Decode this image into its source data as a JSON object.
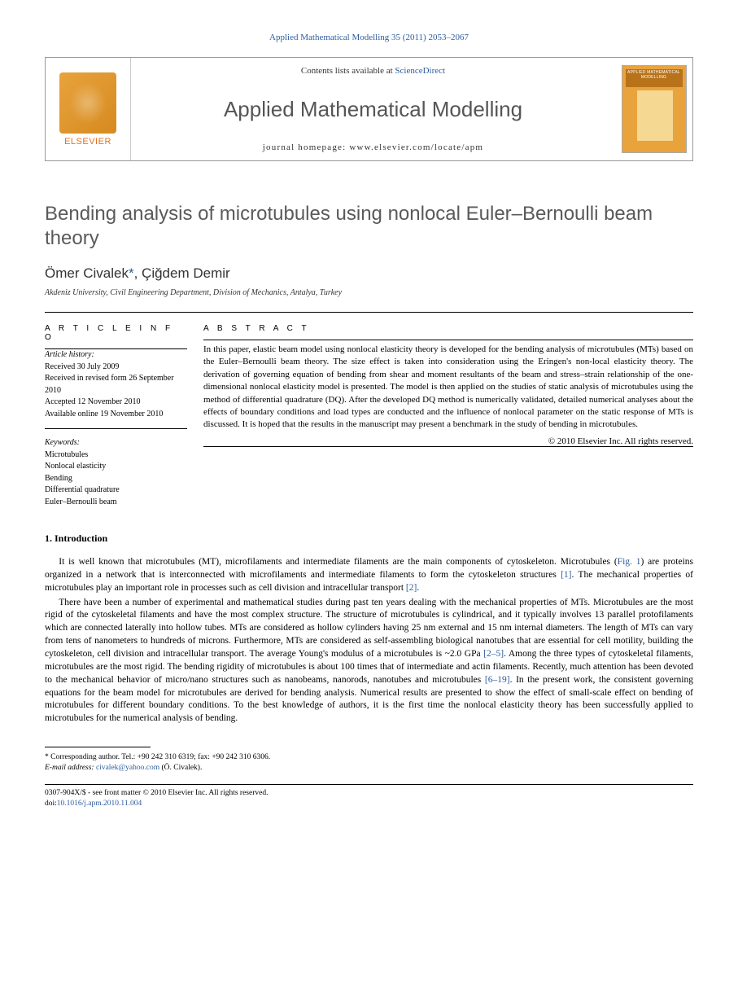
{
  "header_citation": "Applied Mathematical Modelling 35 (2011) 2053–2067",
  "contents_text": "Contents lists available at ",
  "contents_link": "ScienceDirect",
  "journal_name": "Applied Mathematical Modelling",
  "homepage_label": "journal homepage: www.elsevier.com/locate/apm",
  "publisher_logo_text": "ELSEVIER",
  "cover_title_text": "APPLIED MATHEMATICAL MODELLING",
  "article_title": "Bending analysis of microtubules using nonlocal Euler–Bernoulli beam theory",
  "authors_html": "Ömer Civalek",
  "corr_mark": "*",
  "author2": ", Çiğdem Demir",
  "affiliation": "Akdeniz University, Civil Engineering Department, Division of Mechanics, Antalya, Turkey",
  "info_heading": "A R T I C L E   I N F O",
  "abstract_heading": "A B S T R A C T",
  "history_label": "Article history:",
  "history": {
    "received": "Received 30 July 2009",
    "revised": "Received in revised form 26 September 2010",
    "accepted": "Accepted 12 November 2010",
    "online": "Available online 19 November 2010"
  },
  "keywords_label": "Keywords:",
  "keywords": [
    "Microtubules",
    "Nonlocal elasticity",
    "Bending",
    "Differential quadrature",
    "Euler–Bernoulli beam"
  ],
  "abstract": "In this paper, elastic beam model using nonlocal elasticity theory is developed for the bending analysis of microtubules (MTs) based on the Euler–Bernoulli beam theory. The size effect is taken into consideration using the Eringen's non-local elasticity theory. The derivation of governing equation of bending from shear and moment resultants of the beam and stress–strain relationship of the one-dimensional nonlocal elasticity model is presented. The model is then applied on the studies of static analysis of microtubules using the method of differential quadrature (DQ). After the developed DQ method is numerically validated, detailed numerical analyses about the effects of boundary conditions and load types are conducted and the influence of nonlocal parameter on the static response of MTs is discussed. It is hoped that the results in the manuscript may present a benchmark in the study of bending in microtubules.",
  "copyright": "© 2010 Elsevier Inc. All rights reserved.",
  "section1_heading": "1. Introduction",
  "para1_a": "It is well known that microtubules (MT), microfilaments and intermediate filaments are the main components of cytoskeleton. Microtubules (",
  "para1_link1": "Fig. 1",
  "para1_b": ") are proteins organized in a network that is interconnected with microfilaments and intermediate filaments to form the cytoskeleton structures ",
  "para1_link2": "[1]",
  "para1_c": ". The mechanical properties of microtubules play an important role in processes such as cell division and intracellular transport ",
  "para1_link3": "[2]",
  "para1_d": ".",
  "para2_a": "There have been a number of experimental and mathematical studies during past ten years dealing with the mechanical properties of MTs. Microtubules are the most rigid of the cytoskeletal filaments and have the most complex structure. The structure of microtubules is cylindrical, and it typically involves 13 parallel protofilaments which are connected laterally into hollow tubes. MTs are considered as hollow cylinders having 25 nm external and 15 nm internal diameters. The length of MTs can vary from tens of nanometers to hundreds of microns. Furthermore, MTs are considered as self-assembling biological nanotubes that are essential for cell motility, building the cytoskeleton, cell division and intracellular transport. The average Young's modulus of a microtubules is ~2.0 GPa ",
  "para2_link1": "[2–5]",
  "para2_b": ". Among the three types of cytoskeletal filaments, microtubules are the most rigid. The bending rigidity of microtubules is about 100 times that of intermediate and actin filaments. Recently, much attention has been devoted to the mechanical behavior of micro/nano structures such as nanobeams, nanorods, nanotubes and microtubules ",
  "para2_link2": "[6–19]",
  "para2_c": ". In the present work, the consistent governing equations for the beam model for microtubules are derived for bending analysis. Numerical results are presented to show the effect of small-scale effect on bending of microtubules for different boundary conditions. To the best knowledge of authors, it is the first time the nonlocal elasticity theory has been successfully applied to microtubules for the numerical analysis of bending.",
  "corr_label": "* Corresponding author. Tel.: +90 242 310 6319; fax: +90 242 310 6306.",
  "email_label": "E-mail address:",
  "email": "civalek@yahoo.com",
  "email_suffix": " (Ö. Civalek).",
  "issn_line": "0307-904X/$ - see front matter © 2010 Elsevier Inc. All rights reserved.",
  "doi_label": "doi:",
  "doi": "10.1016/j.apm.2010.11.004"
}
